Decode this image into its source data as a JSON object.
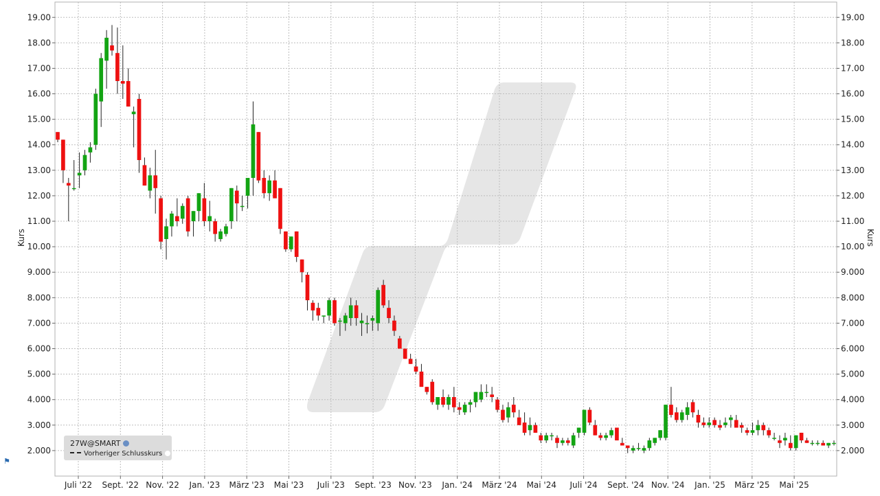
{
  "chart_data": {
    "type": "candlestick",
    "ylabel_left": "Kurs",
    "ylabel_right": "Kurs",
    "ylim": [
      1.0,
      19.6
    ],
    "y_ticks": [
      "2.000",
      "3.000",
      "4.000",
      "5.000",
      "6.000",
      "7.000",
      "8.000",
      "9.000",
      "10.00",
      "11.00",
      "12.00",
      "13.00",
      "14.00",
      "15.00",
      "16.00",
      "17.00",
      "18.00",
      "19.00"
    ],
    "x_ticks": [
      "Juli '22",
      "Sept. '22",
      "Nov. '22",
      "Jan. '23",
      "März '23",
      "Mai '23",
      "Juli '23",
      "Sept. '23",
      "Nov. '23",
      "Jan. '24",
      "März '24",
      "Mai '24",
      "Juli '24",
      "Sept. '24",
      "Nov. '24",
      "Jan. '25",
      "März '25",
      "Mai '25"
    ],
    "grid": true,
    "candles_ohlc": [
      [
        14.5,
        14.5,
        14.1,
        14.2
      ],
      [
        14.2,
        14.2,
        12.5,
        13.0
      ],
      [
        12.5,
        12.7,
        11.0,
        12.4
      ],
      [
        12.3,
        13.4,
        12.2,
        12.3
      ],
      [
        12.8,
        13.7,
        12.3,
        12.9
      ],
      [
        13.0,
        13.8,
        12.8,
        13.6
      ],
      [
        13.7,
        14.1,
        13.3,
        13.9
      ],
      [
        14.0,
        16.2,
        13.8,
        16.0
      ],
      [
        15.7,
        17.6,
        14.7,
        17.4
      ],
      [
        17.3,
        18.5,
        16.2,
        18.2
      ],
      [
        17.9,
        18.7,
        17.5,
        17.7
      ],
      [
        17.6,
        18.6,
        16.0,
        16.5
      ],
      [
        16.5,
        17.9,
        15.8,
        16.4
      ],
      [
        16.5,
        17.0,
        15.5,
        15.5
      ],
      [
        15.2,
        15.5,
        13.9,
        15.3
      ],
      [
        15.8,
        16.0,
        12.9,
        13.4
      ],
      [
        13.2,
        13.5,
        12.4,
        12.4
      ],
      [
        12.2,
        13.1,
        11.9,
        12.8
      ],
      [
        12.8,
        13.8,
        11.3,
        12.3
      ],
      [
        11.9,
        12.0,
        9.9,
        10.2
      ],
      [
        10.3,
        11.1,
        9.5,
        10.8
      ],
      [
        10.8,
        11.4,
        10.4,
        11.3
      ],
      [
        11.2,
        11.9,
        10.8,
        11.0
      ],
      [
        11.1,
        11.7,
        10.9,
        11.6
      ],
      [
        11.9,
        12.0,
        10.4,
        10.6
      ],
      [
        11.0,
        11.4,
        10.4,
        11.4
      ],
      [
        11.4,
        12.1,
        11.0,
        12.1
      ],
      [
        11.9,
        12.5,
        10.8,
        11.0
      ],
      [
        11.0,
        11.8,
        10.6,
        11.2
      ],
      [
        11.0,
        11.1,
        10.2,
        10.5
      ],
      [
        10.3,
        10.7,
        10.2,
        10.6
      ],
      [
        10.5,
        10.9,
        10.4,
        10.8
      ],
      [
        11.0,
        12.3,
        10.7,
        12.3
      ],
      [
        12.2,
        12.4,
        11.0,
        11.7
      ],
      [
        11.6,
        12.0,
        11.4,
        11.6
      ],
      [
        12.0,
        12.6,
        11.5,
        12.7
      ],
      [
        12.7,
        15.7,
        12.0,
        14.8
      ],
      [
        14.5,
        14.5,
        12.5,
        12.6
      ],
      [
        12.7,
        13.0,
        11.9,
        12.1
      ],
      [
        12.1,
        12.8,
        11.8,
        12.6
      ],
      [
        12.6,
        13.0,
        12.0,
        11.9
      ],
      [
        12.3,
        12.3,
        10.5,
        10.7
      ],
      [
        10.6,
        10.6,
        9.8,
        9.9
      ],
      [
        9.9,
        10.4,
        9.8,
        10.4
      ],
      [
        10.6,
        10.6,
        9.4,
        9.6
      ],
      [
        9.5,
        9.5,
        8.6,
        9.0
      ],
      [
        8.9,
        9.0,
        7.5,
        7.9
      ],
      [
        7.8,
        7.9,
        7.1,
        7.5
      ],
      [
        7.6,
        7.8,
        7.1,
        7.3
      ],
      [
        7.3,
        7.3,
        7.0,
        7.3
      ],
      [
        7.3,
        8.0,
        7.1,
        7.9
      ],
      [
        7.9,
        8.0,
        6.9,
        7.0
      ],
      [
        7.1,
        7.2,
        6.5,
        7.1
      ],
      [
        7.0,
        7.4,
        6.7,
        7.3
      ],
      [
        7.2,
        8.0,
        6.9,
        7.7
      ],
      [
        7.7,
        7.9,
        6.9,
        7.2
      ],
      [
        7.0,
        7.4,
        6.5,
        7.1
      ],
      [
        7.0,
        7.3,
        6.6,
        7.0
      ],
      [
        7.1,
        7.3,
        6.7,
        7.2
      ],
      [
        7.0,
        8.4,
        6.7,
        8.3
      ],
      [
        8.5,
        8.7,
        7.6,
        7.7
      ],
      [
        7.6,
        7.9,
        7.0,
        7.2
      ],
      [
        7.1,
        7.3,
        6.5,
        6.7
      ],
      [
        6.4,
        6.5,
        6.0,
        6.0
      ],
      [
        6.0,
        6.0,
        5.6,
        5.6
      ],
      [
        5.6,
        5.8,
        5.4,
        5.4
      ],
      [
        5.3,
        5.6,
        5.0,
        5.1
      ],
      [
        5.1,
        5.4,
        4.9,
        4.5
      ],
      [
        4.5,
        4.5,
        4.2,
        4.3
      ],
      [
        4.7,
        4.8,
        3.8,
        3.9
      ],
      [
        3.8,
        4.1,
        3.6,
        4.1
      ],
      [
        4.1,
        4.4,
        3.7,
        3.8
      ],
      [
        3.8,
        4.2,
        3.6,
        4.1
      ],
      [
        4.1,
        4.5,
        3.5,
        3.7
      ],
      [
        3.7,
        3.9,
        3.4,
        3.6
      ],
      [
        3.5,
        3.9,
        3.4,
        3.8
      ],
      [
        3.8,
        4.0,
        3.5,
        3.9
      ],
      [
        3.9,
        4.3,
        3.7,
        4.3
      ],
      [
        4.0,
        4.6,
        3.9,
        4.3
      ],
      [
        4.3,
        4.6,
        4.1,
        4.3
      ],
      [
        4.2,
        4.5,
        3.9,
        4.1
      ],
      [
        4.0,
        4.1,
        3.5,
        3.6
      ],
      [
        3.6,
        3.8,
        3.1,
        3.2
      ],
      [
        3.3,
        3.9,
        3.1,
        3.7
      ],
      [
        3.8,
        4.1,
        3.3,
        3.5
      ],
      [
        3.3,
        3.6,
        3.0,
        3.0
      ],
      [
        3.1,
        3.5,
        2.6,
        2.7
      ],
      [
        2.8,
        3.3,
        2.6,
        3.0
      ],
      [
        3.0,
        3.1,
        2.7,
        2.7
      ],
      [
        2.6,
        2.7,
        2.3,
        2.4
      ],
      [
        2.4,
        2.7,
        2.3,
        2.6
      ],
      [
        2.6,
        2.7,
        2.4,
        2.6
      ],
      [
        2.5,
        2.6,
        2.1,
        2.3
      ],
      [
        2.3,
        2.5,
        2.2,
        2.4
      ],
      [
        2.4,
        2.5,
        2.2,
        2.3
      ],
      [
        2.2,
        2.7,
        2.1,
        2.6
      ],
      [
        2.7,
        2.9,
        2.5,
        2.9
      ],
      [
        2.7,
        3.6,
        2.6,
        3.6
      ],
      [
        3.6,
        3.7,
        3.0,
        3.1
      ],
      [
        3.0,
        3.2,
        2.6,
        2.6
      ],
      [
        2.6,
        2.7,
        2.4,
        2.5
      ],
      [
        2.5,
        2.7,
        2.4,
        2.6
      ],
      [
        2.6,
        2.9,
        2.5,
        2.8
      ],
      [
        2.9,
        2.9,
        2.4,
        2.4
      ],
      [
        2.3,
        2.5,
        2.2,
        2.2
      ],
      [
        2.2,
        2.2,
        1.9,
        2.1
      ],
      [
        2.0,
        2.2,
        1.9,
        2.1
      ],
      [
        2.1,
        2.3,
        2.0,
        2.1
      ],
      [
        2.0,
        2.2,
        1.9,
        2.1
      ],
      [
        2.1,
        2.5,
        2.0,
        2.4
      ],
      [
        2.3,
        2.5,
        2.2,
        2.5
      ],
      [
        2.5,
        2.8,
        2.4,
        2.8
      ],
      [
        2.5,
        3.8,
        2.4,
        3.8
      ],
      [
        3.8,
        4.5,
        3.3,
        3.4
      ],
      [
        3.5,
        3.7,
        3.1,
        3.2
      ],
      [
        3.2,
        3.6,
        3.1,
        3.5
      ],
      [
        3.4,
        3.9,
        3.2,
        3.7
      ],
      [
        3.9,
        4.0,
        3.3,
        3.5
      ],
      [
        3.4,
        3.6,
        2.9,
        3.1
      ],
      [
        3.1,
        3.3,
        2.9,
        3.0
      ],
      [
        3.0,
        3.3,
        2.9,
        3.1
      ],
      [
        3.2,
        3.3,
        2.9,
        3.0
      ],
      [
        3.0,
        3.2,
        2.8,
        2.9
      ],
      [
        3.0,
        3.3,
        2.9,
        3.1
      ],
      [
        3.2,
        3.4,
        2.9,
        3.3
      ],
      [
        3.2,
        3.4,
        2.9,
        2.9
      ],
      [
        3.0,
        3.1,
        2.7,
        2.9
      ],
      [
        2.8,
        2.9,
        2.6,
        2.7
      ],
      [
        2.7,
        3.1,
        2.6,
        2.8
      ],
      [
        2.8,
        3.2,
        2.6,
        3.0
      ],
      [
        3.0,
        3.1,
        2.6,
        2.8
      ],
      [
        2.8,
        2.9,
        2.5,
        2.6
      ],
      [
        2.5,
        2.7,
        2.4,
        2.5
      ],
      [
        2.4,
        2.6,
        2.1,
        2.3
      ],
      [
        2.4,
        2.7,
        2.2,
        2.5
      ],
      [
        2.3,
        2.6,
        2.0,
        2.1
      ],
      [
        2.1,
        2.6,
        2.0,
        2.6
      ],
      [
        2.7,
        2.7,
        2.3,
        2.4
      ],
      [
        2.4,
        2.5,
        2.3,
        2.3
      ],
      [
        2.3,
        2.4,
        2.2,
        2.3
      ],
      [
        2.3,
        2.4,
        2.2,
        2.3
      ],
      [
        2.3,
        2.4,
        2.2,
        2.2
      ],
      [
        2.2,
        2.3,
        2.1,
        2.3
      ],
      [
        2.3,
        2.4,
        2.2,
        2.3
      ]
    ],
    "up_color": "#13a413",
    "down_color": "#ee1111",
    "legend": {
      "title": "27W@SMART",
      "item": "Vorheriger Schlusskurs",
      "placement": "bottom-left"
    }
  }
}
